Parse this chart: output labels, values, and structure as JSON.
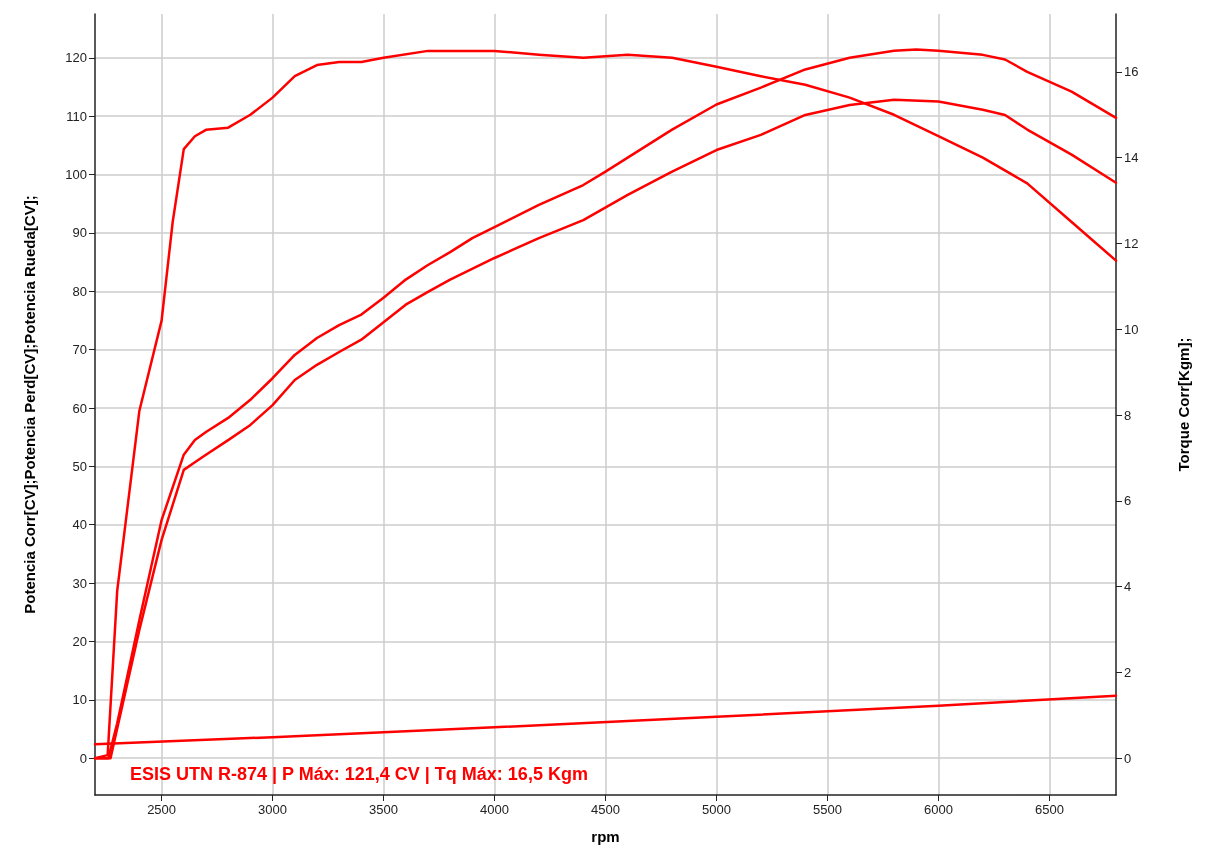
{
  "chart_data": {
    "type": "line",
    "xlabel": "rpm",
    "ylabel": "Potencia Corr[CV];Potencia Perd[CV];Potencia Rueda[CV];",
    "y2label": "Torque Corr[Kgm];",
    "annotations": [
      "ESIS UTN R-874 | P Máx: 121,4 CV | Tq Máx: 16,5 Kgm"
    ],
    "xlim": [
      2200,
      6800
    ],
    "xticks": [
      2500,
      3000,
      3500,
      4000,
      4500,
      5000,
      5500,
      6000,
      6500
    ],
    "ylim": [
      -6.3,
      127.5
    ],
    "yticks": [
      0,
      10,
      20,
      30,
      40,
      50,
      60,
      70,
      80,
      90,
      100,
      110,
      120
    ],
    "y2lim": [
      -0.86,
      17.35
    ],
    "y2ticks": [
      0,
      2,
      4,
      6,
      8,
      10,
      12,
      14,
      16
    ],
    "grid": true,
    "marker": "none",
    "line_style": "solid",
    "series": [
      {
        "color": "#ff0000",
        "x": [
          2200,
          2260,
          2300,
          2400,
          2500,
          2600,
          2650,
          2700,
          2800,
          2900,
          3000,
          3100,
          3200,
          3300,
          3400,
          3500,
          3600,
          3700,
          3800,
          3900,
          4000,
          4200,
          4400,
          4500,
          4600,
          4800,
          5000,
          5200,
          5400,
          5600,
          5800,
          5900,
          6000,
          6200,
          6300,
          6400,
          6600,
          6800
        ],
        "values": [
          0,
          0,
          6,
          23.7,
          40.8,
          52,
          54.5,
          55.9,
          58.3,
          61.4,
          65.1,
          69.1,
          72,
          74.2,
          76,
          78.9,
          82,
          84.5,
          86.7,
          89.1,
          91,
          94.8,
          98.2,
          100.5,
          102.9,
          107.7,
          112,
          114.9,
          118,
          120,
          121.2,
          121.4,
          121.2,
          120.5,
          119.7,
          117.6,
          114.2,
          109.7
        ]
      },
      {
        "color": "#ff0000",
        "x": [
          2200,
          2270,
          2400,
          2500,
          2600,
          2650,
          2700,
          2800,
          2900,
          3000,
          3100,
          3200,
          3300,
          3400,
          3500,
          3600,
          3700,
          3800,
          4000,
          4200,
          4400,
          4600,
          4800,
          5000,
          5200,
          5400,
          5600,
          5800,
          6000,
          6200,
          6300,
          6400,
          6600,
          6800
        ],
        "values": [
          0,
          0,
          22,
          37.4,
          49.4,
          50.7,
          52,
          54.5,
          57.1,
          60.5,
          64.8,
          67.4,
          69.6,
          71.7,
          74.7,
          77.7,
          79.9,
          82,
          85.7,
          89.1,
          92.2,
          96.5,
          100.5,
          104.2,
          106.8,
          110.2,
          111.9,
          112.8,
          112.5,
          111.1,
          110.2,
          107.7,
          103.4,
          98.6
        ]
      },
      {
        "color": "#ff0000",
        "x": [
          2200,
          3000,
          4000,
          5000,
          6000,
          6800
        ],
        "values": [
          2.4,
          3.6,
          5.3,
          7.1,
          9.0,
          10.7
        ]
      },
      {
        "color": "#ff0000",
        "axis": "y2",
        "x": [
          2200,
          2257,
          2300,
          2400,
          2500,
          2550,
          2600,
          2650,
          2700,
          2800,
          2900,
          3000,
          3100,
          3200,
          3300,
          3400,
          3500,
          3700,
          4000,
          4200,
          4400,
          4600,
          4800,
          5000,
          5200,
          5400,
          5600,
          5800,
          6000,
          6200,
          6400,
          6600,
          6800
        ],
        "values": [
          0,
          0.07,
          3.9,
          8.1,
          10.2,
          12.5,
          14.2,
          14.5,
          14.65,
          14.7,
          15.0,
          15.4,
          15.9,
          16.16,
          16.23,
          16.23,
          16.33,
          16.49,
          16.49,
          16.4,
          16.33,
          16.4,
          16.33,
          16.12,
          15.9,
          15.7,
          15.4,
          15.0,
          14.5,
          14.0,
          13.4,
          12.5,
          11.6
        ]
      }
    ]
  }
}
